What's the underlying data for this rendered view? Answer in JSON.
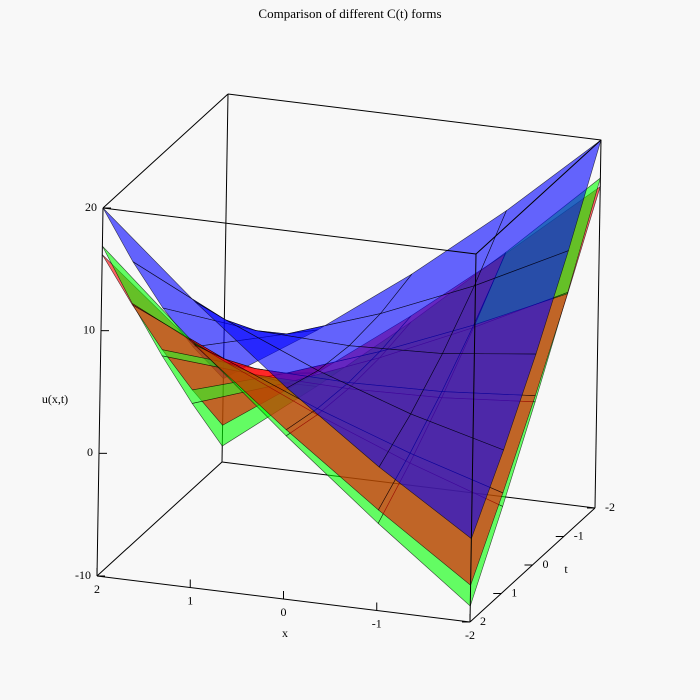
{
  "chart_data": {
    "type": "surface",
    "title": "Comparison of different C(t) forms",
    "xlabel": "x",
    "ylabel": "t",
    "zlabel": "u(x,t)",
    "x": [
      -2,
      -1,
      0,
      1,
      2
    ],
    "y": [
      -2,
      -1,
      0,
      1,
      2
    ],
    "xlim": [
      -2,
      2
    ],
    "ylim": [
      -2,
      2
    ],
    "zlim": [
      -10,
      20
    ],
    "xticks": [
      -2,
      -1,
      0,
      1,
      2
    ],
    "yticks": [
      -2,
      -1,
      0,
      1,
      2
    ],
    "zticks": [
      -10,
      0,
      10,
      20
    ],
    "series": [
      {
        "color": "#0000ff",
        "z": [
          [
            20,
            13.3,
            7.2,
            1.7,
            -3.2
          ],
          [
            13.3,
            9.5,
            6.3,
            3.7,
            1.7
          ],
          [
            7.2,
            6.3,
            6,
            6.3,
            7.2
          ],
          [
            1.7,
            3.7,
            6.3,
            9.5,
            13.3
          ],
          [
            -3.2,
            1.7,
            7.2,
            13.3,
            20
          ]
        ]
      },
      {
        "color": "#ff0000",
        "z": [
          [
            16.2,
            9.8,
            3.8,
            -1.8,
            -7
          ],
          [
            9.8,
            6.3,
            3.2,
            0.5,
            -1.8
          ],
          [
            3.8,
            3.2,
            3,
            3.2,
            3.8
          ],
          [
            -1.8,
            0.5,
            3.2,
            6.3,
            9.8
          ],
          [
            -7,
            -1.8,
            3.8,
            9.8,
            16.2
          ]
        ]
      },
      {
        "color": "#00ff00",
        "z": [
          [
            16.9,
            9.9,
            3.3,
            -2.9,
            -8.7
          ],
          [
            9.9,
            6.1,
            2.7,
            -0.3,
            -2.9
          ],
          [
            3.3,
            2.7,
            2.5,
            2.7,
            3.3
          ],
          [
            -2.9,
            -0.3,
            2.7,
            6.1,
            9.9
          ],
          [
            -8.7,
            -2.9,
            3.3,
            9.9,
            16.9
          ]
        ]
      }
    ]
  }
}
